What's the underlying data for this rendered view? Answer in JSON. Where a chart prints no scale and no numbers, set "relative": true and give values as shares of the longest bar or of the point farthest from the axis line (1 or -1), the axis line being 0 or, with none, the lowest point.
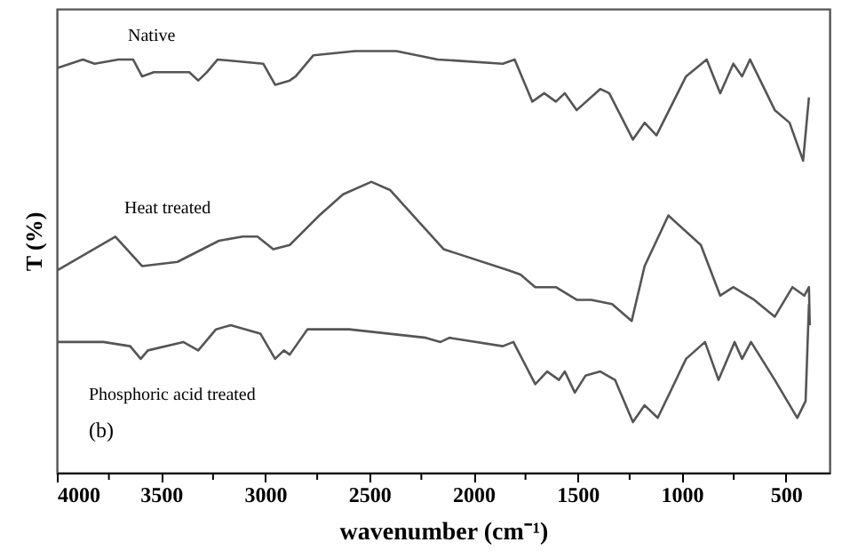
{
  "chart_data": {
    "type": "line",
    "relative": true,
    "xlabel": "wavenumber    (cm⁻¹)",
    "ylabel": "T (%)",
    "xlim": [
      4000,
      290
    ],
    "xticks": [
      4000,
      {
        "value": 3750,
        "label": null
      },
      3500,
      {
        "value": 3250,
        "label": null
      },
      3000,
      {
        "value": 2750,
        "label": null
      },
      2500,
      {
        "value": 2250,
        "label": null
      },
      2000,
      {
        "value": 1750,
        "label": null
      },
      1500,
      {
        "value": 1250,
        "label": null
      },
      1000,
      {
        "value": 750,
        "label": null
      },
      500
    ],
    "grid": false,
    "legend": false,
    "marker": "none",
    "line_style": "solid",
    "annotations": [
      "(b)"
    ],
    "series": [
      {
        "name": "Native",
        "color": "#555555",
        "x": [
          3997,
          3875,
          3819,
          3705,
          3634,
          3591,
          3534,
          3364,
          3321,
          3279,
          3228,
          3009,
          2952,
          2882,
          2853,
          2768,
          2569,
          2370,
          2171,
          1859,
          1802,
          1717,
          1660,
          1604,
          1561,
          1504,
          1391,
          1348,
          1234,
          1178,
          1121,
          979,
          880,
          815,
          752,
          710,
          672,
          553,
          482,
          417,
          389
        ],
        "values": [
          0.96,
          0.98,
          0.97,
          0.98,
          0.98,
          0.94,
          0.95,
          0.95,
          0.93,
          0.95,
          0.98,
          0.97,
          0.92,
          0.93,
          0.94,
          0.99,
          1.0,
          1.0,
          0.98,
          0.97,
          0.98,
          0.88,
          0.9,
          0.88,
          0.9,
          0.86,
          0.91,
          0.9,
          0.79,
          0.83,
          0.8,
          0.94,
          0.98,
          0.9,
          0.97,
          0.94,
          0.98,
          0.86,
          0.83,
          0.74,
          0.89
        ]
      },
      {
        "name": "Heat treated",
        "color": "#555555",
        "x": [
          3997,
          3719,
          3591,
          3421,
          3222,
          3108,
          3037,
          2961,
          2882,
          2740,
          2626,
          2490,
          2399,
          2143,
          1831,
          1774,
          1703,
          1604,
          1504,
          1434,
          1334,
          1240,
          1178,
          1064,
          908,
          815,
          752,
          652,
          553,
          468,
          411,
          389,
          385
        ],
        "values": [
          0.48,
          0.56,
          0.49,
          0.5,
          0.55,
          0.56,
          0.56,
          0.53,
          0.54,
          0.61,
          0.66,
          0.69,
          0.67,
          0.53,
          0.48,
          0.47,
          0.44,
          0.44,
          0.41,
          0.41,
          0.4,
          0.36,
          0.49,
          0.61,
          0.54,
          0.42,
          0.44,
          0.41,
          0.37,
          0.44,
          0.42,
          0.44,
          0.35
        ]
      },
      {
        "name": "Phosphoric acid treated",
        "color": "#555555",
        "x": [
          3997,
          3776,
          3648,
          3597,
          3563,
          3393,
          3321,
          3236,
          3165,
          3023,
          2952,
          2910,
          2882,
          2797,
          2597,
          2228,
          2158,
          2115,
          1859,
          1808,
          1703,
          1646,
          1589,
          1561,
          1513,
          1462,
          1391,
          1320,
          1234,
          1178,
          1115,
          979,
          888,
          823,
          746,
          710,
          667,
          553,
          445,
          405,
          389
        ],
        "values": [
          0.31,
          0.31,
          0.3,
          0.27,
          0.29,
          0.31,
          0.29,
          0.34,
          0.35,
          0.33,
          0.27,
          0.29,
          0.28,
          0.34,
          0.34,
          0.32,
          0.31,
          0.32,
          0.3,
          0.31,
          0.21,
          0.24,
          0.22,
          0.24,
          0.19,
          0.23,
          0.24,
          0.22,
          0.12,
          0.16,
          0.13,
          0.27,
          0.31,
          0.22,
          0.31,
          0.27,
          0.31,
          0.22,
          0.13,
          0.17,
          0.4
        ]
      }
    ]
  }
}
